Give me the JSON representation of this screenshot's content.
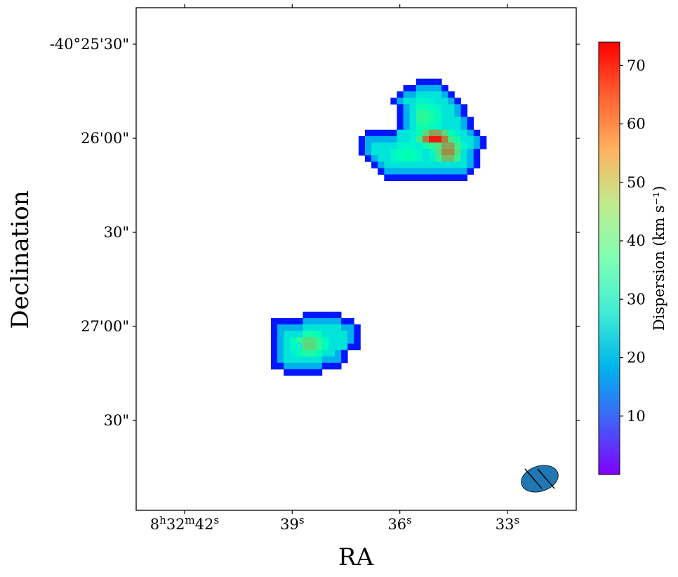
{
  "chart_data": {
    "type": "heatmap",
    "xlabel": "RA",
    "ylabel": "Declination",
    "x_ticks": [
      {
        "label": "8h32m42s",
        "h": "8",
        "m": "32",
        "s": "42",
        "value_s": 42
      },
      {
        "label": "39s",
        "s": "39",
        "value_s": 39
      },
      {
        "label": "36s",
        "s": "36",
        "value_s": 36
      },
      {
        "label": "33s",
        "s": "33",
        "value_s": 33
      }
    ],
    "y_ticks": [
      {
        "label": "-40°25'30\"",
        "value_arcsec": -30
      },
      {
        "label": "26'00\"",
        "value_arcsec": 0
      },
      {
        "label": "30\"",
        "value_arcsec": 30
      },
      {
        "label": "27'00\"",
        "value_arcsec": 60
      },
      {
        "label": "30\"",
        "value_arcsec": 90
      }
    ],
    "colorbar": {
      "label": "Dispersion (km s⁻¹)",
      "colormap": "rainbow",
      "range": [
        0,
        74
      ],
      "ticks": [
        "10",
        "20",
        "30",
        "40",
        "50",
        "60",
        "70"
      ],
      "tick_values": [
        10,
        20,
        30,
        40,
        50,
        60,
        70
      ]
    },
    "beam": {
      "color": "#1f77b4"
    },
    "regions": [
      {
        "name": "north",
        "rows": [
          {
            "row": 0,
            "c0": 8,
            "c1": 11
          },
          {
            "row": 1,
            "c0": 6,
            "c1": 12
          },
          {
            "row": 2,
            "c0": 5,
            "c1": 13
          },
          {
            "row": 3,
            "c0": 4,
            "c1": 14
          },
          {
            "row": 4,
            "c0": 5,
            "c1": 15
          },
          {
            "row": 5,
            "c0": 5,
            "c1": 15
          },
          {
            "row": 6,
            "c0": 5,
            "c1": 16
          },
          {
            "row": 7,
            "c0": 5,
            "c1": 16
          },
          {
            "row": 8,
            "c0": 0,
            "c1": 17
          },
          {
            "row": 9,
            "c0": -1,
            "c1": 18
          },
          {
            "row": 10,
            "c0": -1,
            "c1": 18
          },
          {
            "row": 11,
            "c0": -1,
            "c1": 17
          },
          {
            "row": 12,
            "c0": 0,
            "c1": 17
          },
          {
            "row": 13,
            "c0": 1,
            "c1": 17
          },
          {
            "row": 14,
            "c0": 2,
            "c1": 16
          },
          {
            "row": 15,
            "c0": 3,
            "c1": 15
          }
        ],
        "peaks": [
          {
            "col": 10.5,
            "row": 8.8,
            "value": 74,
            "sx": 2.6,
            "sy": 1.2
          },
          {
            "col": 12.5,
            "row": 10.8,
            "value": 62,
            "sx": 2.2,
            "sy": 2.6
          },
          {
            "col": 8.5,
            "row": 5.5,
            "value": 44,
            "sx": 3.5,
            "sy": 3.0
          },
          {
            "col": 6.0,
            "row": 11.5,
            "value": 38,
            "sx": 3.5,
            "sy": 2.5
          }
        ]
      },
      {
        "name": "south",
        "rows": [
          {
            "row": 0,
            "c0": 5,
            "c1": 10
          },
          {
            "row": 1,
            "c0": 0,
            "c1": 12
          },
          {
            "row": 2,
            "c0": 0,
            "c1": 13
          },
          {
            "row": 3,
            "c0": 0,
            "c1": 13
          },
          {
            "row": 4,
            "c0": 0,
            "c1": 13
          },
          {
            "row": 5,
            "c0": 0,
            "c1": 13
          },
          {
            "row": 6,
            "c0": 0,
            "c1": 11
          },
          {
            "row": 7,
            "c0": 0,
            "c1": 11
          },
          {
            "row": 8,
            "c0": 0,
            "c1": 10
          },
          {
            "row": 9,
            "c0": 2,
            "c1": 7
          }
        ],
        "peaks": [
          {
            "col": 5.5,
            "row": 4.6,
            "value": 52,
            "sx": 2.8,
            "sy": 2.2
          }
        ]
      }
    ]
  }
}
